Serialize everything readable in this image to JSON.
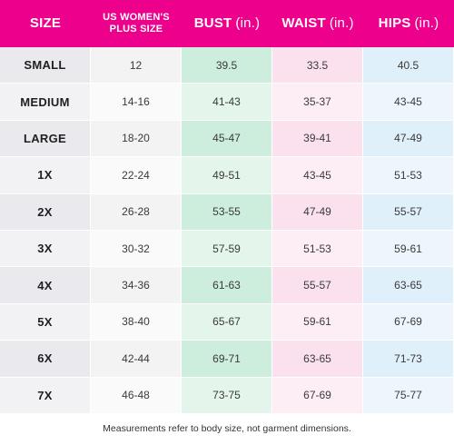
{
  "header": {
    "size": "SIZE",
    "us_line1": "US WOMEN'S",
    "us_line2": "PLUS SIZE",
    "bust": "BUST",
    "waist": "WAIST",
    "hips": "HIPS",
    "unit": "(in.)"
  },
  "rows": [
    {
      "size": "SMALL",
      "us": "12",
      "bust": "39.5",
      "waist": "33.5",
      "hips": "40.5"
    },
    {
      "size": "MEDIUM",
      "us": "14-16",
      "bust": "41-43",
      "waist": "35-37",
      "hips": "43-45"
    },
    {
      "size": "LARGE",
      "us": "18-20",
      "bust": "45-47",
      "waist": "39-41",
      "hips": "47-49"
    },
    {
      "size": "1X",
      "us": "22-24",
      "bust": "49-51",
      "waist": "43-45",
      "hips": "51-53"
    },
    {
      "size": "2X",
      "us": "26-28",
      "bust": "53-55",
      "waist": "47-49",
      "hips": "55-57"
    },
    {
      "size": "3X",
      "us": "30-32",
      "bust": "57-59",
      "waist": "51-53",
      "hips": "59-61"
    },
    {
      "size": "4X",
      "us": "34-36",
      "bust": "61-63",
      "waist": "55-57",
      "hips": "63-65"
    },
    {
      "size": "5X",
      "us": "38-40",
      "bust": "65-67",
      "waist": "59-61",
      "hips": "67-69"
    },
    {
      "size": "6X",
      "us": "42-44",
      "bust": "69-71",
      "waist": "63-65",
      "hips": "71-73"
    },
    {
      "size": "7X",
      "us": "46-48",
      "bust": "73-75",
      "waist": "67-69",
      "hips": "75-77"
    }
  ],
  "footnote": "Measurements refer to body size, not garment dimensions.",
  "colors": {
    "header_bg": "#ec008c",
    "bust_col": "#cdeedd",
    "waist_col": "#fbe1ee",
    "hips_col": "#dff0fb"
  }
}
